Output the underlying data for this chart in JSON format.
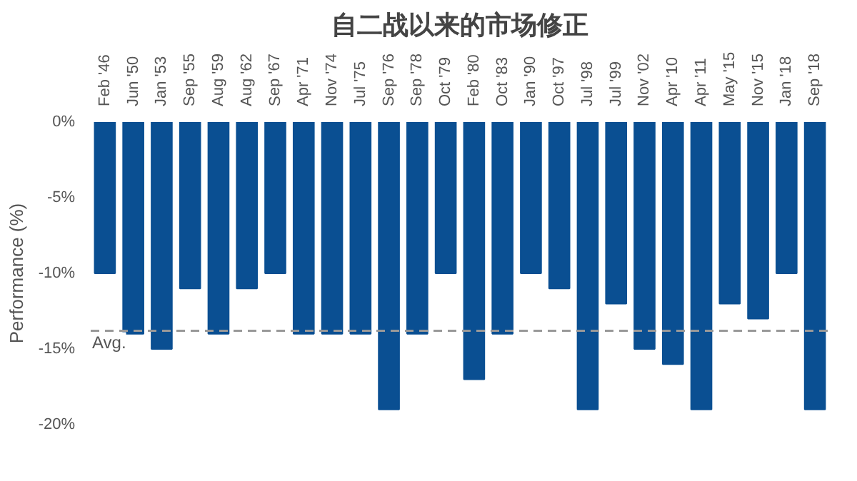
{
  "chart_data": {
    "type": "bar",
    "title": "自二战以来的市场修正",
    "ylabel": "Performance (%)",
    "categories": [
      "Feb '46",
      "Jun '50",
      "Jan '53",
      "Sep '55",
      "Aug '59",
      "Aug '62",
      "Sep '67",
      "Apr '71",
      "Nov '74",
      "Jul '75",
      "Sep '76",
      "Sep '78",
      "Oct '79",
      "Feb '80",
      "Oct '83",
      "Jan '90",
      "Oct '97",
      "Jul '98",
      "Jul '99",
      "Nov '02",
      "Apr '10",
      "Apr '11",
      "May '15",
      "Nov '15",
      "Jan '18",
      "Sep '18"
    ],
    "values": [
      -10,
      -14,
      -15,
      -11,
      -14,
      -11,
      -10,
      -14,
      -14,
      -14,
      -19,
      -14,
      -10,
      -17,
      -14,
      -10,
      -11,
      -19,
      -12,
      -15,
      -16,
      -19,
      -12,
      -13,
      -10,
      -19
    ],
    "color": "#0a4f92",
    "ylim": [
      -20,
      0
    ],
    "yticks": [
      {
        "value": 0,
        "label": "0%"
      },
      {
        "value": -5,
        "label": "-5%"
      },
      {
        "value": -10,
        "label": "-10%"
      },
      {
        "value": -15,
        "label": "-15%"
      },
      {
        "value": -20,
        "label": "-20%"
      }
    ],
    "ref_lines": [
      {
        "axis": "y",
        "value": -13.8,
        "label": "Avg.",
        "color": "#999999",
        "line_style": "dashed"
      }
    ],
    "grid": false
  }
}
